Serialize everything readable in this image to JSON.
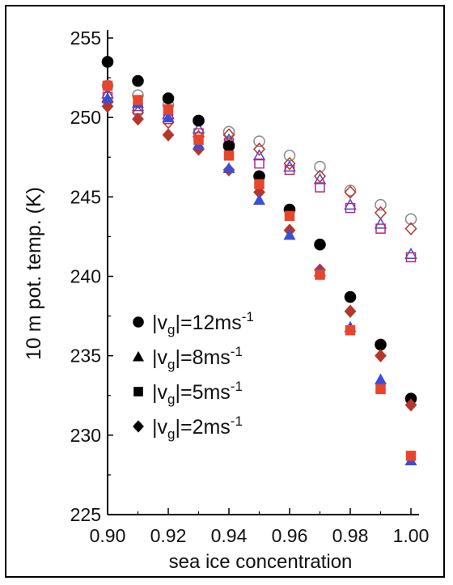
{
  "chart_data": {
    "type": "scatter",
    "xlabel": "sea ice concentration",
    "ylabel": "10 m pot. temp. (K)",
    "xlim": [
      0.9,
      1.0
    ],
    "ylim": [
      225,
      255
    ],
    "x_ticks": [
      "0.90",
      "0.92",
      "0.94",
      "0.96",
      "0.98",
      "1.00"
    ],
    "y_ticks": [
      "225",
      "230",
      "235",
      "240",
      "245",
      "250",
      "255"
    ],
    "legend_position": "bottom-left",
    "legend": [
      {
        "marker": "circle",
        "pre": "|v",
        "sub": "g",
        "mid": "|=12ms",
        "sup": "-1"
      },
      {
        "marker": "triangle",
        "pre": "|v",
        "sub": "g",
        "mid": "|=8ms",
        "sup": "-1"
      },
      {
        "marker": "square",
        "pre": "|v",
        "sub": "g",
        "mid": "|=5ms",
        "sup": "-1"
      },
      {
        "marker": "diamond",
        "pre": "|v",
        "sub": "g",
        "mid": "|=2ms",
        "sup": "-1"
      }
    ],
    "x": [
      0.9,
      0.91,
      0.92,
      0.93,
      0.94,
      0.95,
      0.96,
      0.97,
      0.98,
      0.99,
      1.0
    ],
    "series": [
      {
        "marker": "circle",
        "style": "filled",
        "color": "#000000",
        "values": [
          253.5,
          252.3,
          251.2,
          249.8,
          248.2,
          246.3,
          244.2,
          242.0,
          238.7,
          235.7,
          232.3
        ]
      },
      {
        "marker": "triangle",
        "style": "filled",
        "color": "#3a4fd8",
        "values": [
          251.2,
          250.9,
          250.0,
          248.3,
          246.8,
          244.8,
          242.6,
          240.3,
          236.8,
          233.5,
          228.4
        ]
      },
      {
        "marker": "square",
        "style": "filled",
        "color": "#e8452a",
        "values": [
          252.0,
          251.1,
          250.5,
          248.6,
          247.6,
          245.8,
          243.8,
          240.1,
          236.6,
          232.9,
          228.7
        ]
      },
      {
        "marker": "diamond",
        "style": "filled",
        "color": "#b5362b",
        "values": [
          250.7,
          249.9,
          248.9,
          248.0,
          246.7,
          245.3,
          242.9,
          240.4,
          237.8,
          235.0,
          231.9
        ]
      },
      {
        "marker": "circle",
        "style": "open",
        "color": "#888888",
        "values": [
          252.0,
          251.4,
          250.8,
          249.8,
          249.1,
          248.5,
          247.6,
          246.9,
          245.4,
          244.5,
          243.6
        ]
      },
      {
        "marker": "triangle",
        "style": "open",
        "color": "#3a4fd8",
        "values": [
          251.5,
          250.7,
          250.2,
          249.3,
          248.6,
          247.6,
          246.9,
          246.1,
          244.5,
          243.3,
          241.4
        ]
      },
      {
        "marker": "square",
        "style": "open",
        "color": "#b22a78",
        "values": [
          251.3,
          250.5,
          249.9,
          249.0,
          248.4,
          247.1,
          246.7,
          245.6,
          244.3,
          243.0,
          241.2
        ]
      },
      {
        "marker": "diamond",
        "style": "open",
        "color": "#b5362b",
        "values": [
          251.0,
          250.3,
          249.7,
          248.8,
          248.9,
          248.0,
          247.1,
          246.3,
          245.3,
          244.0,
          243.0
        ]
      }
    ]
  }
}
